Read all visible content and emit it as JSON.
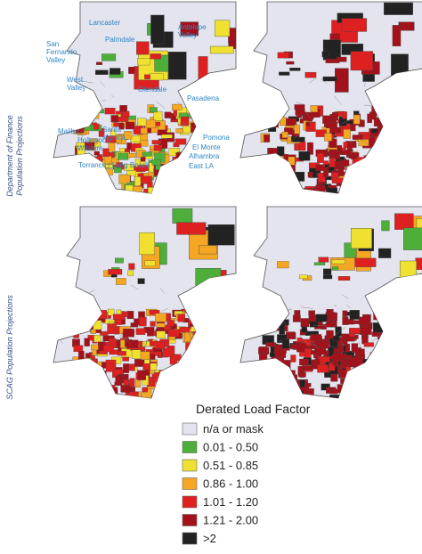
{
  "row_labels": [
    {
      "lines": [
        "Department of Finance",
        "Population Projections"
      ]
    },
    {
      "lines": [
        "SCAG Population Projections"
      ]
    }
  ],
  "place_labels": [
    {
      "lines": [
        "Lancaster"
      ]
    },
    {
      "lines": [
        "Palmdale"
      ]
    },
    {
      "lines": [
        "Antelope",
        "Valley"
      ]
    },
    {
      "lines": [
        "San",
        "Fernando",
        "Valley"
      ]
    },
    {
      "lines": [
        "West",
        "Valley"
      ]
    },
    {
      "lines": [
        "Glendale"
      ]
    },
    {
      "lines": [
        "Pasadena"
      ]
    },
    {
      "lines": [
        "Malibu"
      ]
    },
    {
      "lines": [
        "Santa",
        "Monica"
      ]
    },
    {
      "lines": [
        "Hollywood-",
        "Wilshire"
      ]
    },
    {
      "lines": [
        "Pomona"
      ]
    },
    {
      "lines": [
        "El Monte"
      ]
    },
    {
      "lines": [
        "Alhambra"
      ]
    },
    {
      "lines": [
        "East LA"
      ]
    },
    {
      "lines": [
        "Torrance / Long Beach"
      ]
    }
  ],
  "legend": {
    "title": "Derated Load Factor",
    "items": [
      {
        "label": "n/a or mask",
        "color": "#e4e4ee"
      },
      {
        "label": "0.01 - 0.50",
        "color": "#4daf3a"
      },
      {
        "label": "0.51 - 0.85",
        "color": "#f0e130"
      },
      {
        "label": "0.86 - 1.00",
        "color": "#f5a623"
      },
      {
        "label": "1.01 - 1.20",
        "color": "#de2020"
      },
      {
        "label": "1.21 - 2.00",
        "color": "#a3121b"
      },
      {
        "label": ">2",
        "color": "#222222"
      }
    ]
  }
}
